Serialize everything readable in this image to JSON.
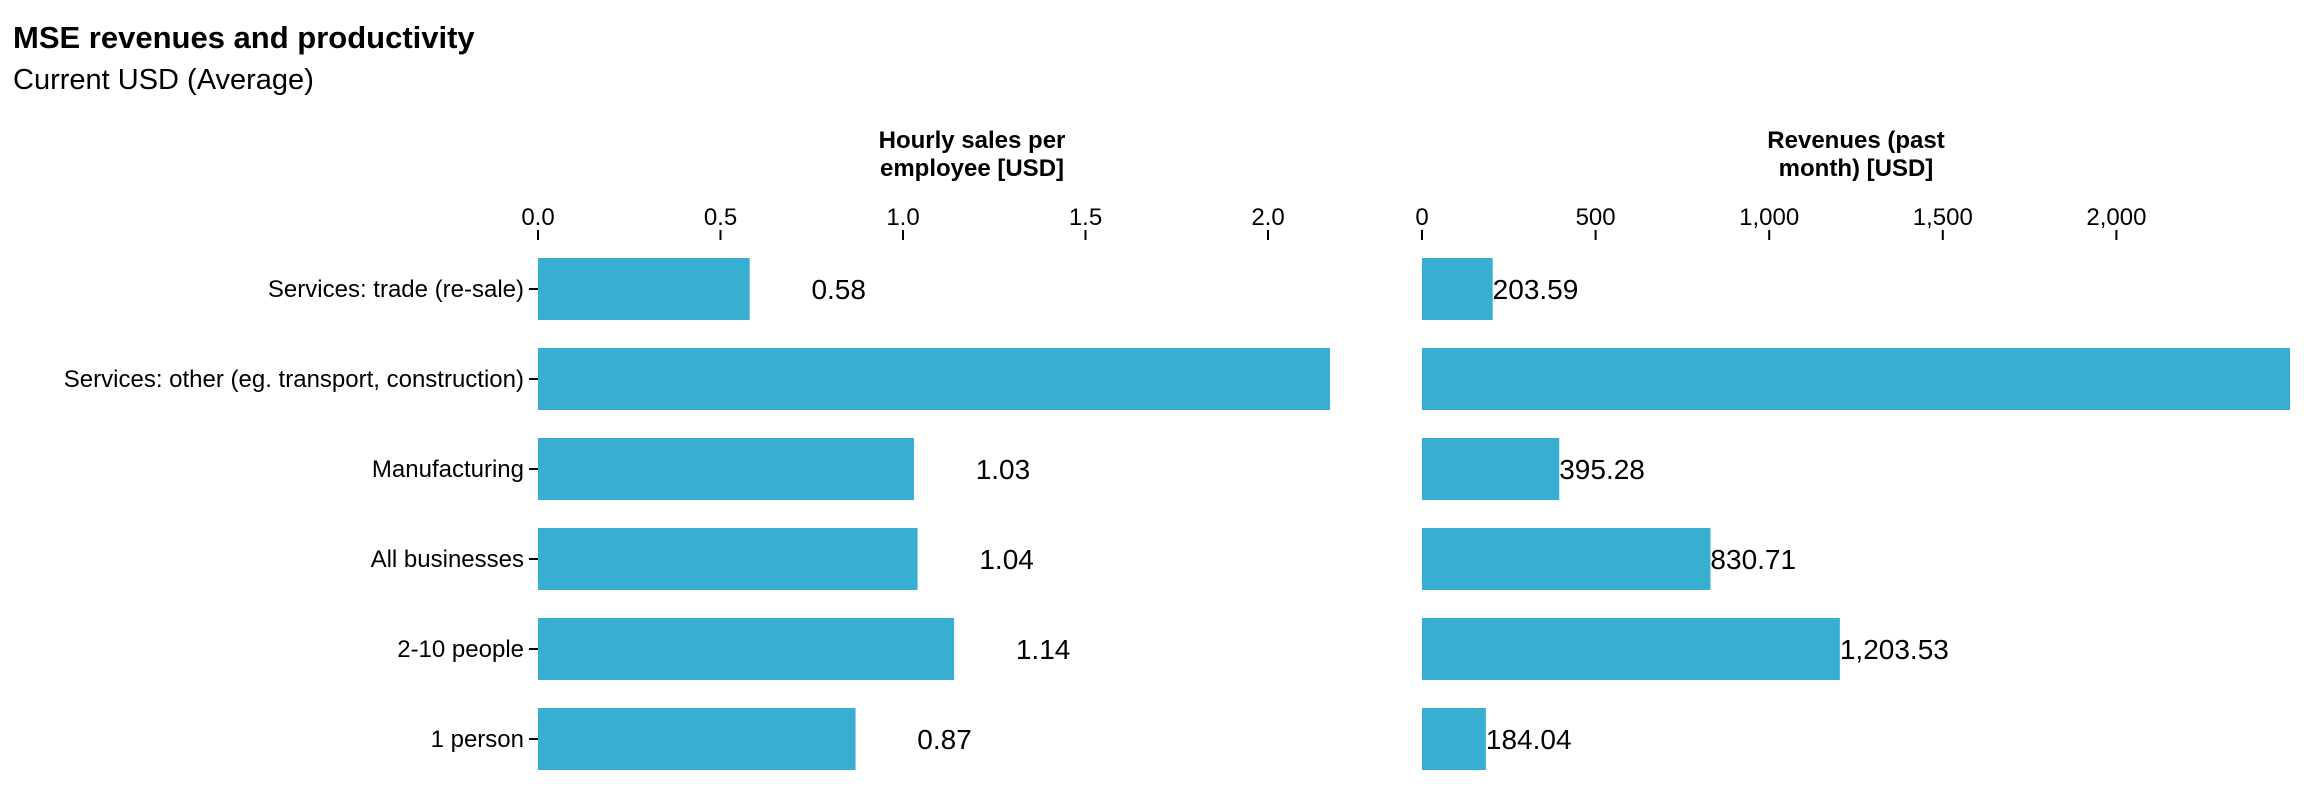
{
  "title": "MSE revenues and productivity",
  "subtitle": "Current USD (Average)",
  "bar_color": "#38AED1",
  "chart_data": {
    "type": "bar",
    "orientation": "horizontal",
    "title": "MSE revenues and productivity",
    "subtitle": "Current USD (Average)",
    "categories": [
      "Services: trade (re-sale)",
      "Services: other (eg. transport, construction)",
      "Manufacturing",
      "All businesses",
      "2-10 people",
      "1 person"
    ],
    "panels": [
      {
        "title_lines": [
          "Hourly sales per",
          "employee [USD]"
        ],
        "xlim": [
          0,
          2.2
        ],
        "ticks": [
          0,
          0.5,
          1,
          1.5,
          2
        ],
        "tick_labels": [
          "0.0",
          "0.5",
          "1.0",
          "1.5",
          "2.0"
        ],
        "values": [
          0.58,
          2.17,
          1.03,
          1.04,
          1.14,
          0.87
        ],
        "data_labels": [
          "0.58",
          "",
          "1.03",
          "1.04",
          "1.14",
          "0.87"
        ]
      },
      {
        "title_lines": [
          "Revenues (past",
          "month) [USD]"
        ],
        "xlim": [
          0,
          2500
        ],
        "ticks": [
          0,
          500,
          1000,
          1500,
          2000
        ],
        "tick_labels": [
          "0",
          "500",
          "1,000",
          "1,500",
          "2,000"
        ],
        "values": [
          203.59,
          2500,
          395.28,
          830.71,
          1203.53,
          184.04
        ],
        "data_labels": [
          "203.59",
          "",
          "395.28",
          "830.71",
          "1,203.53",
          "184.04"
        ]
      }
    ],
    "grid": false,
    "legend": "none"
  }
}
